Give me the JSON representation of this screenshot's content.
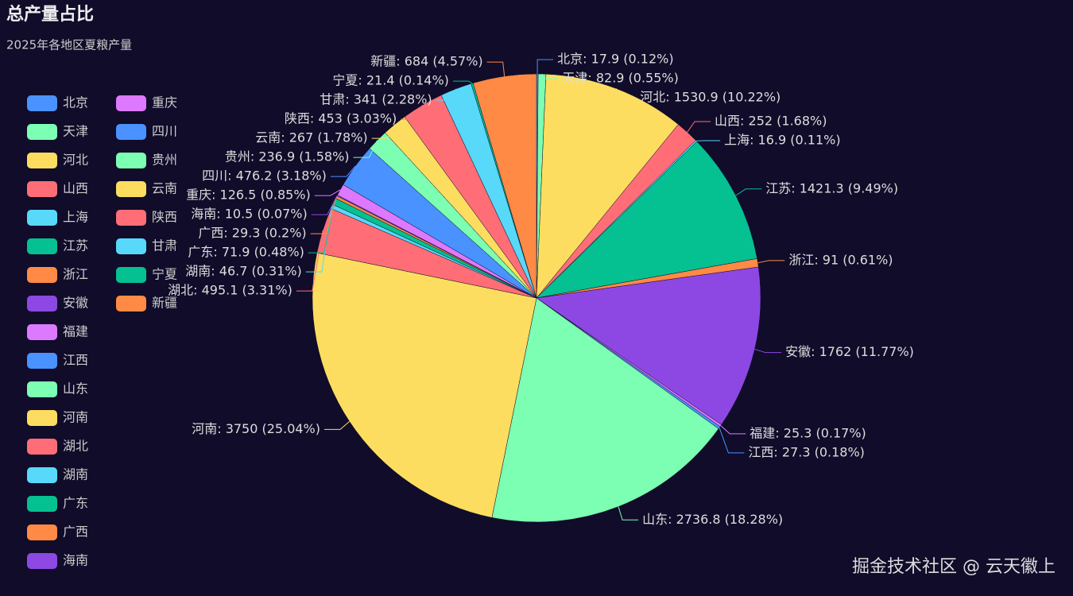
{
  "chart_data": {
    "type": "pie",
    "title": "总产量占比",
    "subtitle": "2025年各地区夏粮产量",
    "watermark": "掘金技术社区 @ 云天徽上",
    "categories": [
      "北京",
      "天津",
      "河北",
      "山西",
      "上海",
      "江苏",
      "浙江",
      "安徽",
      "福建",
      "江西",
      "山东",
      "河南",
      "湖北",
      "湖南",
      "广东",
      "广西",
      "海南",
      "重庆",
      "四川",
      "贵州",
      "云南",
      "陕西",
      "甘肃",
      "宁夏",
      "新疆"
    ],
    "values": [
      17.9,
      82.9,
      1530.9,
      252,
      16.9,
      1421.3,
      91,
      1762,
      25.3,
      27.3,
      2736.8,
      3750,
      495.1,
      46.7,
      71.9,
      29.3,
      10.5,
      126.5,
      476.2,
      236.9,
      267,
      453,
      341,
      21.4,
      684
    ],
    "value_labels": [
      "北京: 17.9 (0.12%)",
      "天津: 82.9 (0.55%)",
      "河北: 1530.9 (10.22%)",
      "山西: 252 (1.68%)",
      "上海: 16.9 (0.11%)",
      "江苏: 1421.3 (9.49%)",
      "浙江: 91 (0.61%)",
      "安徽: 1762 (11.77%)",
      "福建: 25.3 (0.17%)",
      "江西: 27.3 (0.18%)",
      "山东: 2736.8 (18.28%)",
      "河南: 3750 (25.04%)",
      "湖北: 495.1 (3.31%)",
      "湖南: 46.7 (0.31%)",
      "广东: 71.9 (0.48%)",
      "广西: 29.3 (0.2%)",
      "海南: 10.5 (0.07%)",
      "重庆: 126.5 (0.85%)",
      "四川: 476.2 (3.18%)",
      "贵州: 236.9 (1.58%)",
      "云南: 267 (1.78%)",
      "陕西: 453 (3.03%)",
      "甘肃: 341 (2.28%)",
      "宁夏: 21.4 (0.14%)",
      "新疆: 684 (4.57%)"
    ],
    "colors": [
      "#4992ff",
      "#7cffb2",
      "#fddd60",
      "#ff6e76",
      "#58d9f9",
      "#05c091",
      "#ff8a45",
      "#8d48e3",
      "#dd79ff",
      "#4992ff",
      "#7cffb2",
      "#fddd60",
      "#ff6e76",
      "#58d9f9",
      "#05c091",
      "#ff8a45",
      "#8d48e3",
      "#dd79ff",
      "#4992ff",
      "#7cffb2",
      "#fddd60",
      "#ff6e76",
      "#58d9f9",
      "#05c091",
      "#ff8a45"
    ]
  }
}
